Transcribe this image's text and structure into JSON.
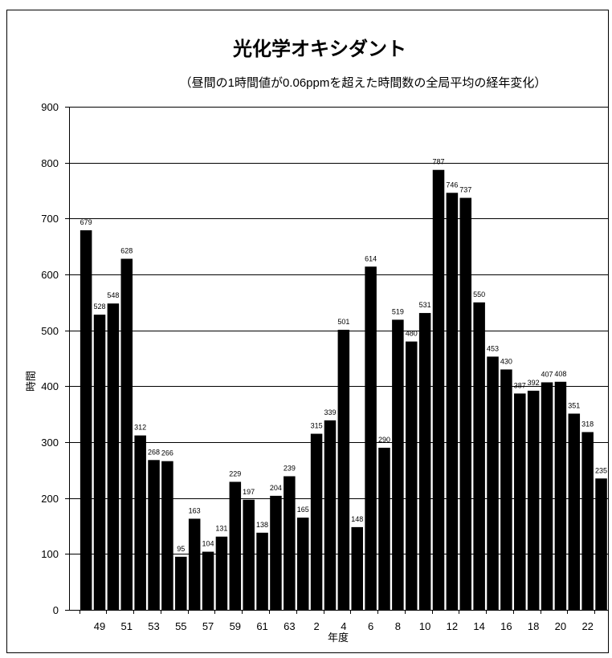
{
  "chart_data": {
    "type": "bar",
    "title": "光化学オキシダント",
    "subtitle": "（昼間の1時間値が0.06ppmを超えた時間数の全局平均の経年変化）",
    "xlabel": "年度",
    "ylabel": "時間",
    "ylim": [
      0,
      900
    ],
    "yticks": [
      0,
      100,
      200,
      300,
      400,
      500,
      600,
      700,
      800,
      900
    ],
    "categories": [
      "",
      "49",
      "",
      "51",
      "",
      "53",
      "",
      "55",
      "",
      "57",
      "",
      "59",
      "",
      "61",
      "",
      "63",
      "",
      "2",
      "",
      "4",
      "",
      "6",
      "",
      "8",
      "",
      "10",
      "",
      "12",
      "",
      "14",
      "",
      "16",
      "",
      "18",
      "",
      "20",
      "",
      "22",
      ""
    ],
    "values": [
      679,
      528,
      548,
      628,
      312,
      268,
      266,
      95,
      163,
      104,
      131,
      229,
      197,
      138,
      204,
      239,
      165,
      315,
      339,
      501,
      148,
      614,
      290,
      519,
      480,
      531,
      787,
      746,
      737,
      550,
      453,
      430,
      387,
      392,
      407,
      408,
      351,
      318,
      235
    ],
    "data_labels": true,
    "grid": true,
    "legend": "none",
    "bar_color": "#000000",
    "line_color": "#000000"
  }
}
